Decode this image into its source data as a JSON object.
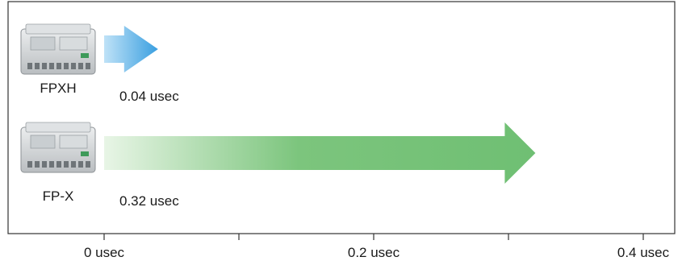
{
  "chart_data": {
    "type": "bar",
    "orientation": "horizontal",
    "title": "",
    "xlabel": "",
    "ylabel": "",
    "categories": [
      "FPXH",
      "FP-X"
    ],
    "values": [
      0.04,
      0.32
    ],
    "value_labels": [
      "0.04 usec",
      "0.32 usec"
    ],
    "xlim": [
      0,
      0.4
    ],
    "ticks": [
      {
        "value": 0,
        "label": "0 usec"
      },
      {
        "value": 0.1,
        "label": ""
      },
      {
        "value": 0.2,
        "label": "0.2 usec"
      },
      {
        "value": 0.3,
        "label": ""
      },
      {
        "value": 0.4,
        "label": "0.4 usec"
      }
    ],
    "grid": false,
    "colors": {
      "FPXH": "#4aa8e0",
      "FP-X": "#6fbf73"
    },
    "device_icons": [
      "plc-unit-icon",
      "plc-unit-icon"
    ]
  }
}
